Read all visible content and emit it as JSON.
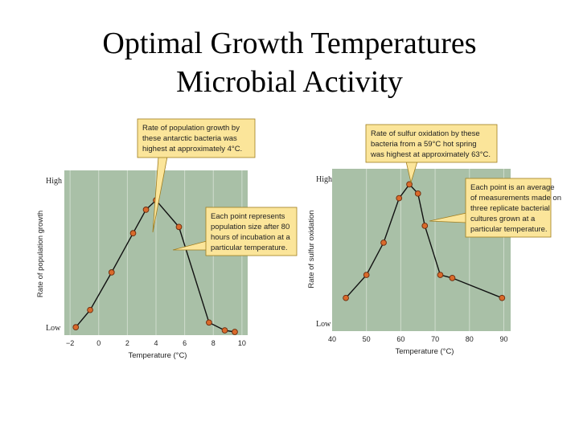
{
  "slide": {
    "title_line1": "Optimal Growth Temperatures",
    "title_line2": "Microbial Activity"
  },
  "colors": {
    "plot_bg": "#a9c0a7",
    "plot_grid": "#cfdccd",
    "point_fill": "#d96a2b",
    "point_stroke": "#6b2a0c",
    "callout_fill": "#fbe59a",
    "callout_stroke": "#a07d1f"
  },
  "chart_data": [
    {
      "type": "line",
      "xlabel": "Temperature (°C)",
      "ylabel": "Rate of population growth",
      "y_high_label": "High",
      "y_low_label": "Low",
      "xlim": [
        -2.4,
        10.4
      ],
      "ylim": [
        0,
        1
      ],
      "x_ticks": [
        "−2",
        "0",
        "2",
        "4",
        "6",
        "8",
        "10"
      ],
      "tick_values": [
        -2,
        0,
        2,
        4,
        6,
        8,
        10
      ],
      "grid": true,
      "series": [
        {
          "x": [
            -1.6,
            -0.6,
            0.9,
            2.4,
            3.3,
            4.0,
            5.6,
            7.7,
            8.8,
            9.5
          ],
          "y": [
            0.03,
            0.14,
            0.38,
            0.63,
            0.78,
            0.84,
            0.67,
            0.06,
            0.01,
            0.0
          ]
        }
      ],
      "peak_callout": [
        "Rate of population growth by",
        "these antarctic bacteria was",
        "highest at approximately 4°C."
      ],
      "point_callout": [
        "Each point represents",
        "population size after 80",
        "hours of incubation at a",
        "particular temperature."
      ]
    },
    {
      "type": "line",
      "xlabel": "Temperature (°C)",
      "ylabel": "Rate of sulfur oxidation",
      "y_high_label": "High",
      "y_low_label": "Low",
      "xlim": [
        40,
        92
      ],
      "ylim": [
        0,
        1
      ],
      "x_ticks": [
        "40",
        "50",
        "60",
        "70",
        "80",
        "90"
      ],
      "tick_values": [
        40,
        50,
        60,
        70,
        80,
        90
      ],
      "grid": true,
      "series": [
        {
          "x": [
            44,
            50,
            55,
            59.5,
            62.5,
            65,
            67,
            71.5,
            75,
            89.5
          ],
          "y": [
            0.19,
            0.34,
            0.55,
            0.84,
            0.93,
            0.87,
            0.66,
            0.34,
            0.32,
            0.19
          ]
        }
      ],
      "peak_callout": [
        "Rate of sulfur oxidation by these",
        "bacteria from a 59°C hot spring",
        "was highest at approximately 63°C."
      ],
      "point_callout": [
        "Each point is an average",
        "of measurements made on",
        "three replicate bacterial",
        "cultures grown at a",
        "particular temperature."
      ]
    }
  ]
}
